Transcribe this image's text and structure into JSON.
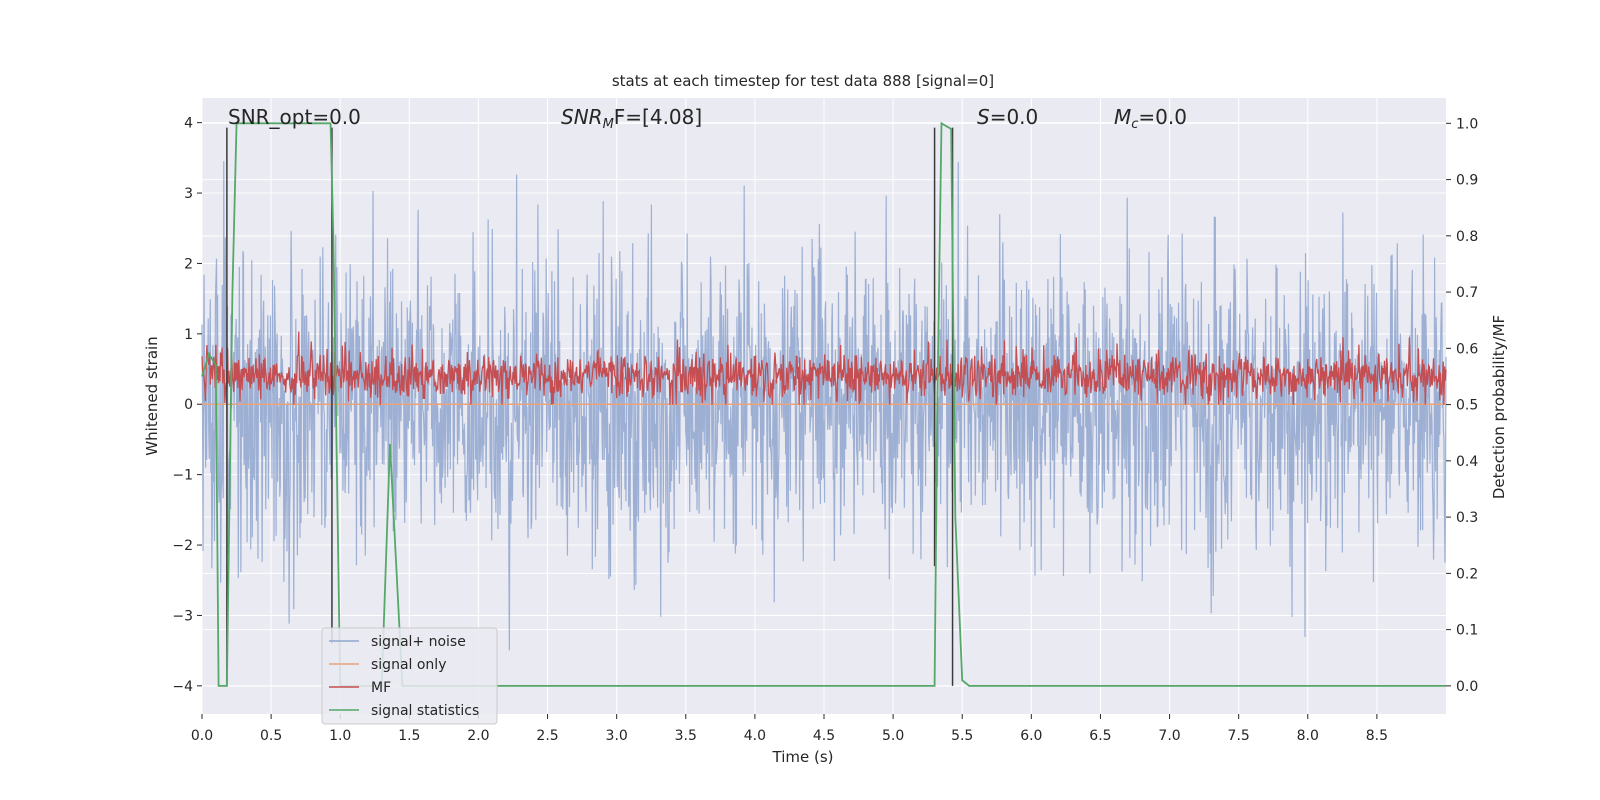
{
  "chart_data": {
    "type": "line",
    "title": "stats at each timestep for test data 888 [signal=0]",
    "xlabel": "Time (s)",
    "ylabel": "Whitened strain",
    "ylabel_right": "Detection probability/MF",
    "xlim": [
      0.0,
      9.0
    ],
    "ylim": [
      -4.4,
      4.35
    ],
    "ylim_right": [
      -0.05,
      1.045
    ],
    "x_ticks": [
      0.0,
      0.5,
      1.0,
      1.5,
      2.0,
      2.5,
      3.0,
      3.5,
      4.0,
      4.5,
      5.0,
      5.5,
      6.0,
      6.5,
      7.0,
      7.5,
      8.0,
      8.5
    ],
    "x_tick_labels": [
      "0.0",
      "0.5",
      "1.0",
      "1.5",
      "2.0",
      "2.5",
      "3.0",
      "3.5",
      "4.0",
      "4.5",
      "5.0",
      "5.5",
      "6.0",
      "6.5",
      "7.0",
      "7.5",
      "8.0",
      "8.5"
    ],
    "y_ticks": [
      -4,
      -3,
      -2,
      -1,
      0,
      1,
      2,
      3,
      4
    ],
    "y_tick_labels": [
      "−4",
      "−3",
      "−2",
      "−1",
      "0",
      "1",
      "2",
      "3",
      "4"
    ],
    "y_right_ticks": [
      0.0,
      0.1,
      0.2,
      0.3,
      0.4,
      0.5,
      0.6,
      0.7,
      0.8,
      0.9,
      1.0
    ],
    "y_right_tick_labels": [
      "0.0",
      "0.1",
      "0.2",
      "0.3",
      "0.4",
      "0.5",
      "0.6",
      "0.7",
      "0.8",
      "0.9",
      "1.0"
    ],
    "grid": true,
    "legend_position": "lower-left",
    "annotations": {
      "snr_opt": "SNR_opt=0.0",
      "snr_mf_main": "SNR",
      "snr_mf_sub": "M",
      "snr_mf_rest": "F=[4.08]",
      "s_main": "S",
      "s_rest": "=0.0",
      "mc_main": "M",
      "mc_sub": "c",
      "mc_rest": "=0.0"
    },
    "series": [
      {
        "name": "signal+ noise",
        "color": "#8fa6cf",
        "axis": "left",
        "description": "noise band roughly between -2.5 and 2.5 with spikes up to about 3.9 and down to -4"
      },
      {
        "name": "signal only",
        "color": "#e8a37d",
        "axis": "left",
        "x": [
          0.0,
          9.0
        ],
        "y": [
          0.0,
          0.0
        ]
      },
      {
        "name": "MF",
        "color": "#c44e52",
        "axis": "right",
        "description": "fluctuates between about 0.5 and 0.62 with peak near 0.63 at t=0.7"
      },
      {
        "name": "signal statistics",
        "color": "#55a868",
        "axis": "right",
        "x": [
          0.0,
          0.05,
          0.1,
          0.12,
          0.18,
          0.22,
          0.25,
          0.93,
          0.95,
          1.0,
          1.3,
          1.36,
          1.45,
          1.5,
          5.3,
          5.32,
          5.35,
          5.42,
          5.45,
          5.5,
          5.55,
          9.0
        ],
        "y": [
          0.55,
          0.59,
          0.57,
          0.0,
          0.0,
          0.7,
          1.0,
          1.0,
          0.8,
          0.0,
          0.0,
          0.43,
          0.0,
          0.0,
          0.0,
          0.5,
          1.0,
          0.99,
          0.3,
          0.01,
          0.0,
          0.0
        ]
      }
    ],
    "vertical_markers": [
      {
        "x": 0.18,
        "y_top": 3.93,
        "y_bottom": -4.0
      },
      {
        "x": 0.94,
        "y_top": 3.93,
        "y_bottom": -3.4
      },
      {
        "x": 5.3,
        "y_top": 3.93,
        "y_bottom": -2.3
      },
      {
        "x": 5.43,
        "y_top": 3.93,
        "y_bottom": -4.0
      }
    ]
  }
}
